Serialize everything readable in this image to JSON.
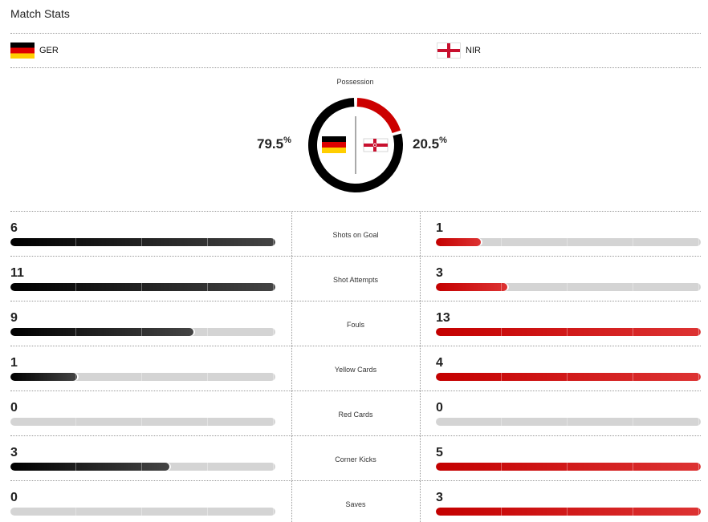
{
  "header": {
    "title": "Match Stats"
  },
  "teams": {
    "home": {
      "abbr": "GER",
      "flag": "germany-flag-icon",
      "color": "#000000"
    },
    "away": {
      "abbr": "NIR",
      "flag": "northern-ireland-flag-icon",
      "color": "#cc0000"
    }
  },
  "possession": {
    "label": "Possession",
    "home_value": "79.5",
    "away_value": "20.5",
    "unit": "%",
    "home_fraction": 0.795,
    "away_fraction": 0.205
  },
  "stats": [
    {
      "label": "Shots on Goal",
      "home": "6",
      "away": "1",
      "home_fraction": 1.0,
      "away_fraction": 0.17
    },
    {
      "label": "Shot Attempts",
      "home": "11",
      "away": "3",
      "home_fraction": 1.0,
      "away_fraction": 0.27
    },
    {
      "label": "Fouls",
      "home": "9",
      "away": "13",
      "home_fraction": 0.69,
      "away_fraction": 1.0
    },
    {
      "label": "Yellow Cards",
      "home": "1",
      "away": "4",
      "home_fraction": 0.25,
      "away_fraction": 1.0
    },
    {
      "label": "Red Cards",
      "home": "0",
      "away": "0",
      "home_fraction": 0.0,
      "away_fraction": 0.0
    },
    {
      "label": "Corner Kicks",
      "home": "3",
      "away": "5",
      "home_fraction": 0.6,
      "away_fraction": 1.0
    },
    {
      "label": "Saves",
      "home": "0",
      "away": "3",
      "home_fraction": 0.0,
      "away_fraction": 1.0
    }
  ]
}
